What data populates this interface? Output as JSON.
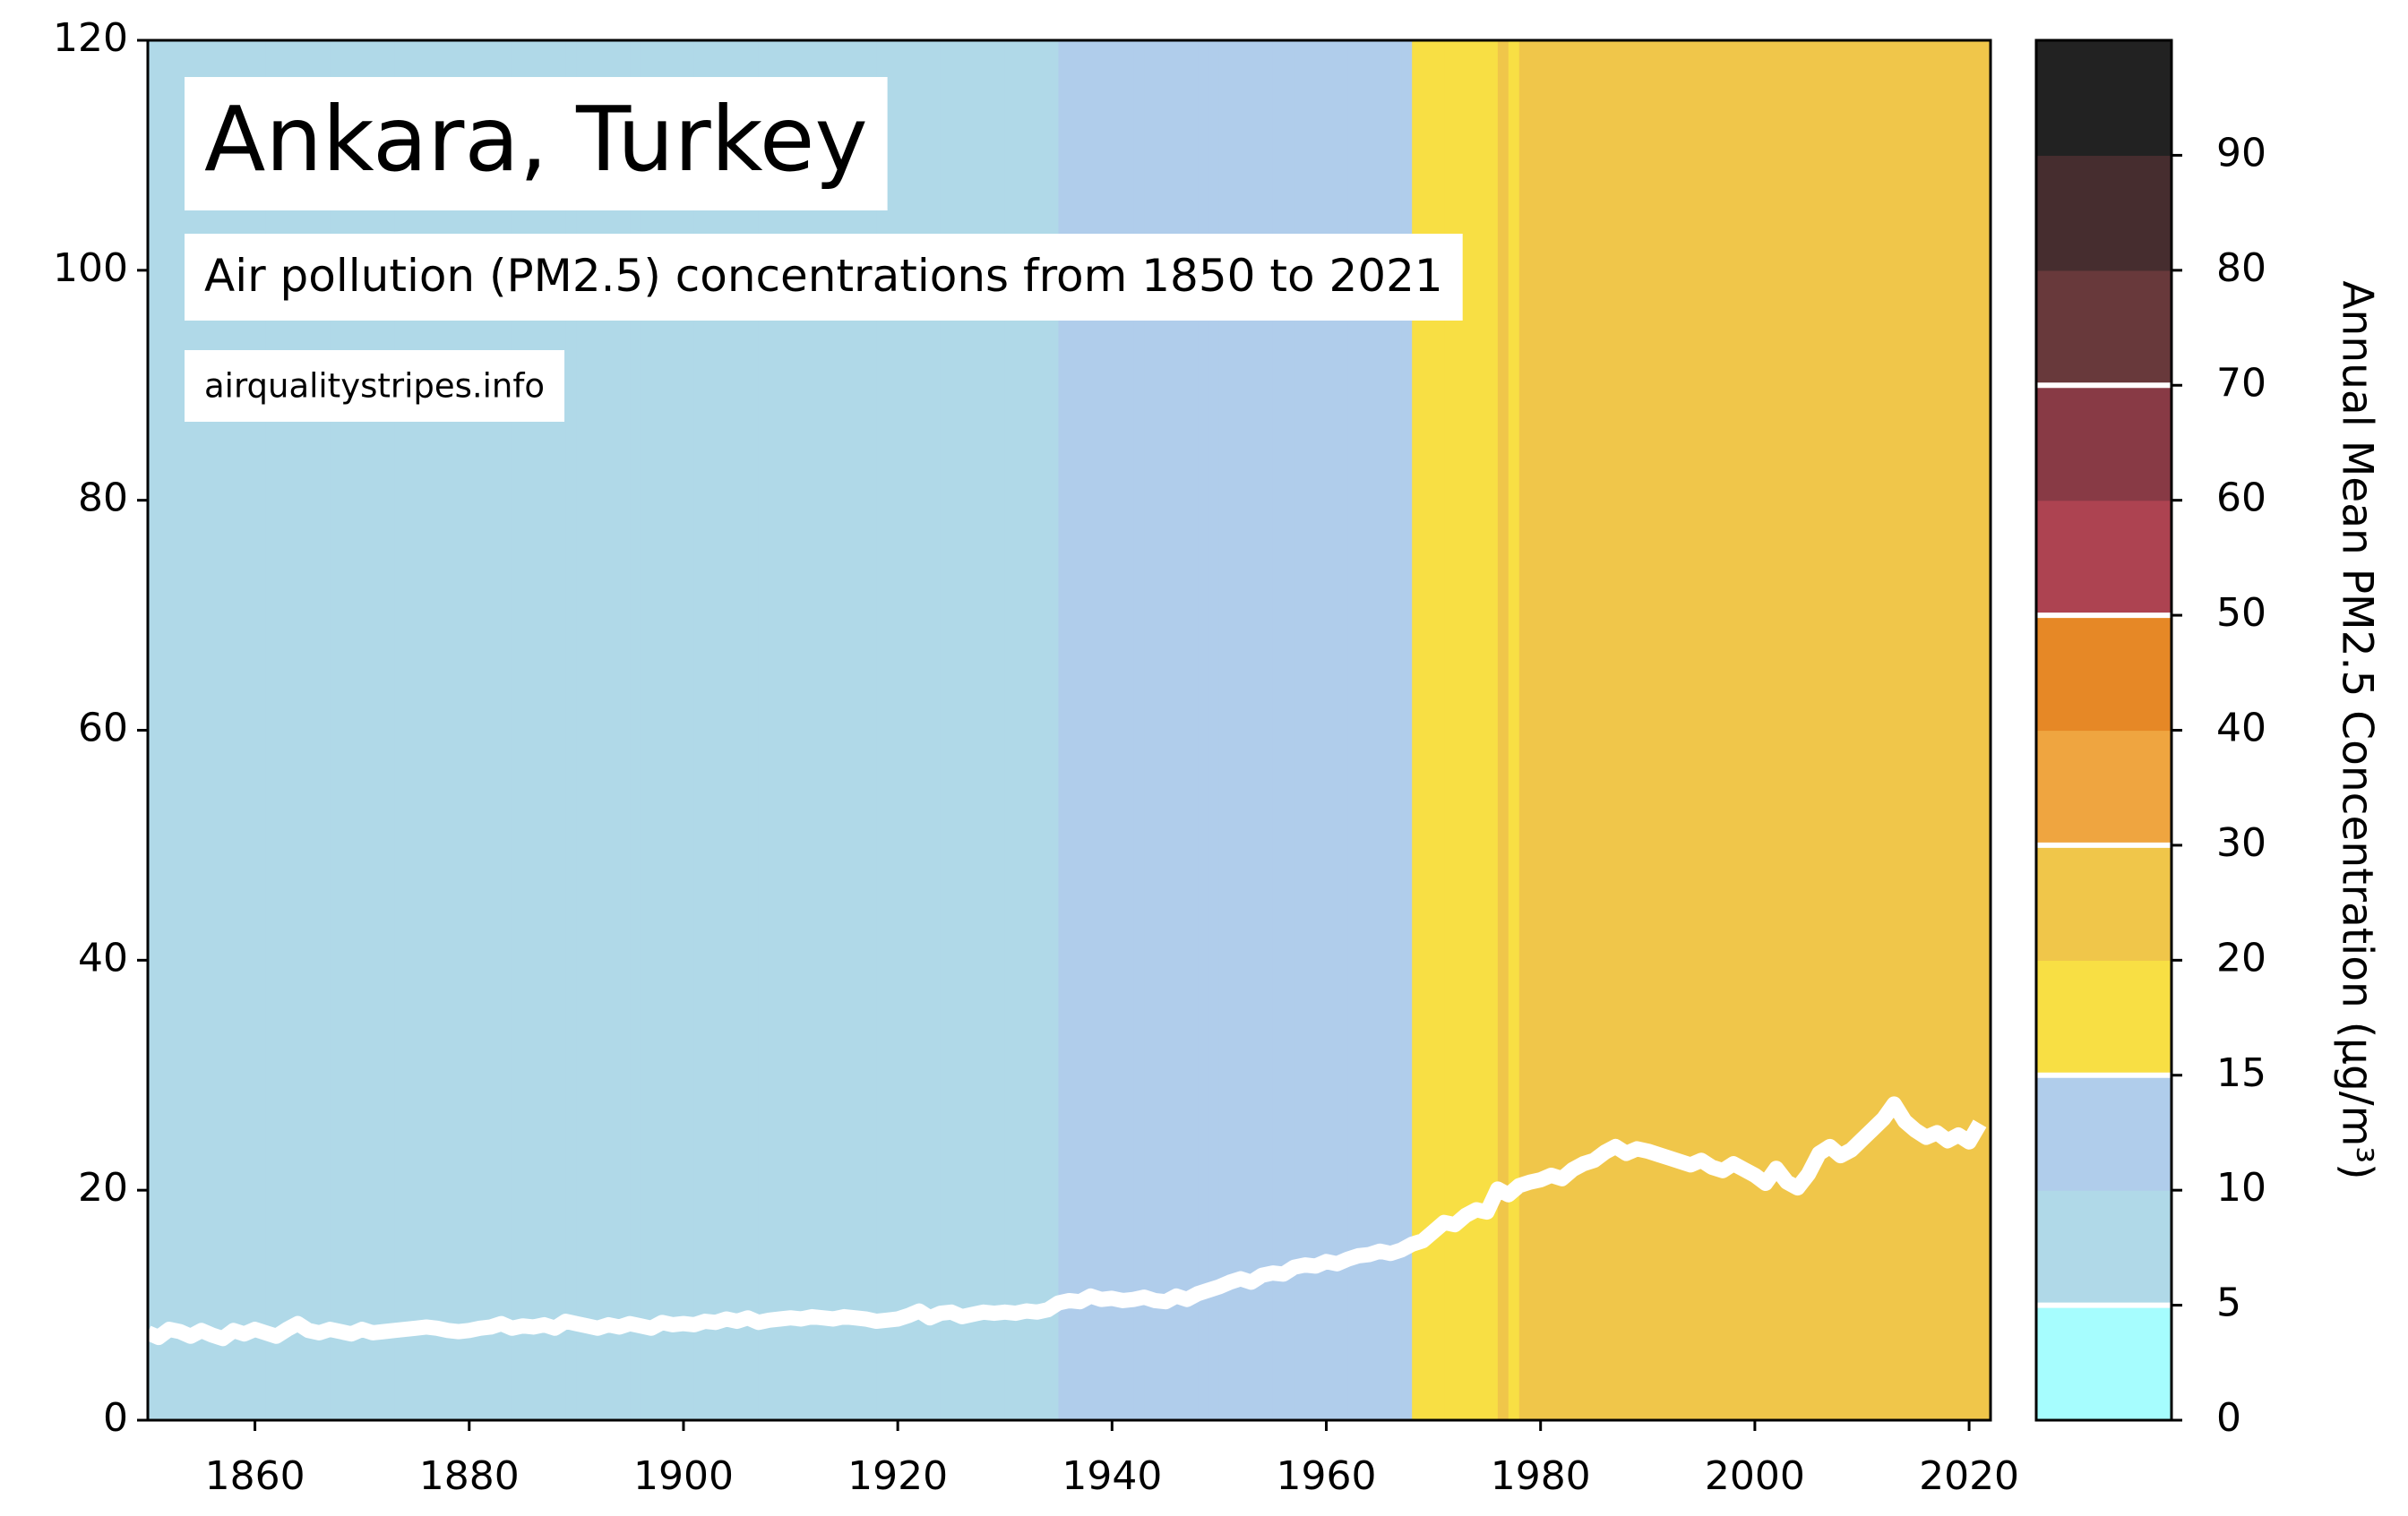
{
  "chart_data": {
    "type": "stripes-line",
    "title": "Ankara, Turkey",
    "subtitle": "Air pollution (PM2.5) concentrations from 1850 to 2021",
    "source": "airqualitystripes.info",
    "x": [
      1850,
      1851,
      1852,
      1853,
      1854,
      1855,
      1856,
      1857,
      1858,
      1859,
      1860,
      1861,
      1862,
      1863,
      1864,
      1865,
      1866,
      1867,
      1868,
      1869,
      1870,
      1871,
      1872,
      1873,
      1874,
      1875,
      1876,
      1877,
      1878,
      1879,
      1880,
      1881,
      1882,
      1883,
      1884,
      1885,
      1886,
      1887,
      1888,
      1889,
      1890,
      1891,
      1892,
      1893,
      1894,
      1895,
      1896,
      1897,
      1898,
      1899,
      1900,
      1901,
      1902,
      1903,
      1904,
      1905,
      1906,
      1907,
      1908,
      1909,
      1910,
      1911,
      1912,
      1913,
      1914,
      1915,
      1916,
      1917,
      1918,
      1919,
      1920,
      1921,
      1922,
      1923,
      1924,
      1925,
      1926,
      1927,
      1928,
      1929,
      1930,
      1931,
      1932,
      1933,
      1934,
      1935,
      1936,
      1937,
      1938,
      1939,
      1940,
      1941,
      1942,
      1943,
      1944,
      1945,
      1946,
      1947,
      1948,
      1949,
      1950,
      1951,
      1952,
      1953,
      1954,
      1955,
      1956,
      1957,
      1958,
      1959,
      1960,
      1961,
      1962,
      1963,
      1964,
      1965,
      1966,
      1967,
      1968,
      1969,
      1970,
      1971,
      1972,
      1973,
      1974,
      1975,
      1976,
      1977,
      1978,
      1979,
      1980,
      1981,
      1982,
      1983,
      1984,
      1985,
      1986,
      1987,
      1988,
      1989,
      1990,
      1991,
      1992,
      1993,
      1994,
      1995,
      1996,
      1997,
      1998,
      1999,
      2000,
      2001,
      2002,
      2003,
      2004,
      2005,
      2006,
      2007,
      2008,
      2009,
      2010,
      2011,
      2012,
      2013,
      2014,
      2015,
      2016,
      2017,
      2018,
      2019,
      2020,
      2021
    ],
    "values": [
      7.6,
      7.2,
      7.9,
      7.7,
      7.3,
      7.8,
      7.4,
      7.1,
      7.8,
      7.5,
      7.9,
      7.6,
      7.3,
      7.9,
      8.4,
      7.8,
      7.6,
      7.9,
      7.7,
      7.5,
      7.9,
      7.6,
      7.7,
      7.8,
      7.9,
      8.0,
      8.1,
      8.0,
      7.8,
      7.7,
      7.8,
      8.0,
      8.1,
      8.4,
      8.0,
      8.2,
      8.1,
      8.3,
      8.0,
      8.6,
      8.4,
      8.2,
      8.0,
      8.3,
      8.1,
      8.4,
      8.2,
      8.0,
      8.5,
      8.3,
      8.4,
      8.3,
      8.6,
      8.5,
      8.8,
      8.6,
      8.9,
      8.5,
      8.7,
      8.8,
      8.9,
      8.8,
      9.0,
      8.9,
      8.8,
      9.0,
      8.9,
      8.8,
      8.6,
      8.7,
      8.8,
      9.1,
      9.5,
      8.9,
      9.3,
      9.4,
      9.0,
      9.2,
      9.4,
      9.3,
      9.4,
      9.3,
      9.5,
      9.4,
      9.6,
      10.2,
      10.4,
      10.3,
      10.8,
      10.5,
      10.6,
      10.4,
      10.5,
      10.7,
      10.4,
      10.3,
      10.8,
      10.5,
      11.0,
      11.3,
      11.6,
      12.0,
      12.3,
      12.0,
      12.6,
      12.8,
      12.7,
      13.3,
      13.5,
      13.4,
      13.8,
      13.6,
      14.0,
      14.3,
      14.4,
      14.7,
      14.5,
      14.8,
      15.3,
      15.6,
      16.4,
      17.2,
      17.0,
      17.8,
      18.3,
      18.1,
      20.1,
      19.6,
      20.4,
      20.7,
      20.9,
      21.3,
      21.0,
      21.8,
      22.3,
      22.6,
      23.3,
      23.8,
      23.2,
      23.6,
      23.4,
      23.1,
      22.8,
      22.5,
      22.2,
      22.6,
      22.0,
      21.7,
      22.3,
      21.8,
      21.3,
      20.6,
      21.9,
      20.7,
      20.2,
      21.4,
      23.2,
      23.8,
      23.0,
      23.5,
      24.4,
      25.3,
      26.2,
      27.5,
      26.0,
      25.2,
      24.6,
      25.0,
      24.3,
      24.8,
      24.2,
      25.8
    ],
    "line_color": "#ffffff",
    "xlim": [
      1850,
      2022
    ],
    "xticks": [
      1860,
      1880,
      1900,
      1920,
      1940,
      1960,
      1980,
      2000,
      2020
    ],
    "ylim": [
      0,
      120
    ],
    "yticks": [
      0,
      20,
      40,
      60,
      80,
      100,
      120
    ],
    "colorbar": {
      "label": "Annual Mean PM2.5 Concentration (µg/m³)",
      "bounds": [
        0,
        5,
        10,
        15,
        20,
        30,
        40,
        50,
        60,
        70,
        80,
        90,
        100
      ],
      "colors": [
        "#a6fdfe",
        "#b0d9e8",
        "#b0cdeb",
        "#f8df44",
        "#f0c64a",
        "#efa540",
        "#e68826",
        "#ad4351",
        "#883a45",
        "#68393b",
        "#462d2f",
        "#222222"
      ],
      "ticks": [
        0,
        5,
        10,
        15,
        20,
        30,
        40,
        50,
        60,
        70,
        80,
        90
      ],
      "lines": [
        5,
        15,
        30,
        50,
        70
      ]
    }
  }
}
